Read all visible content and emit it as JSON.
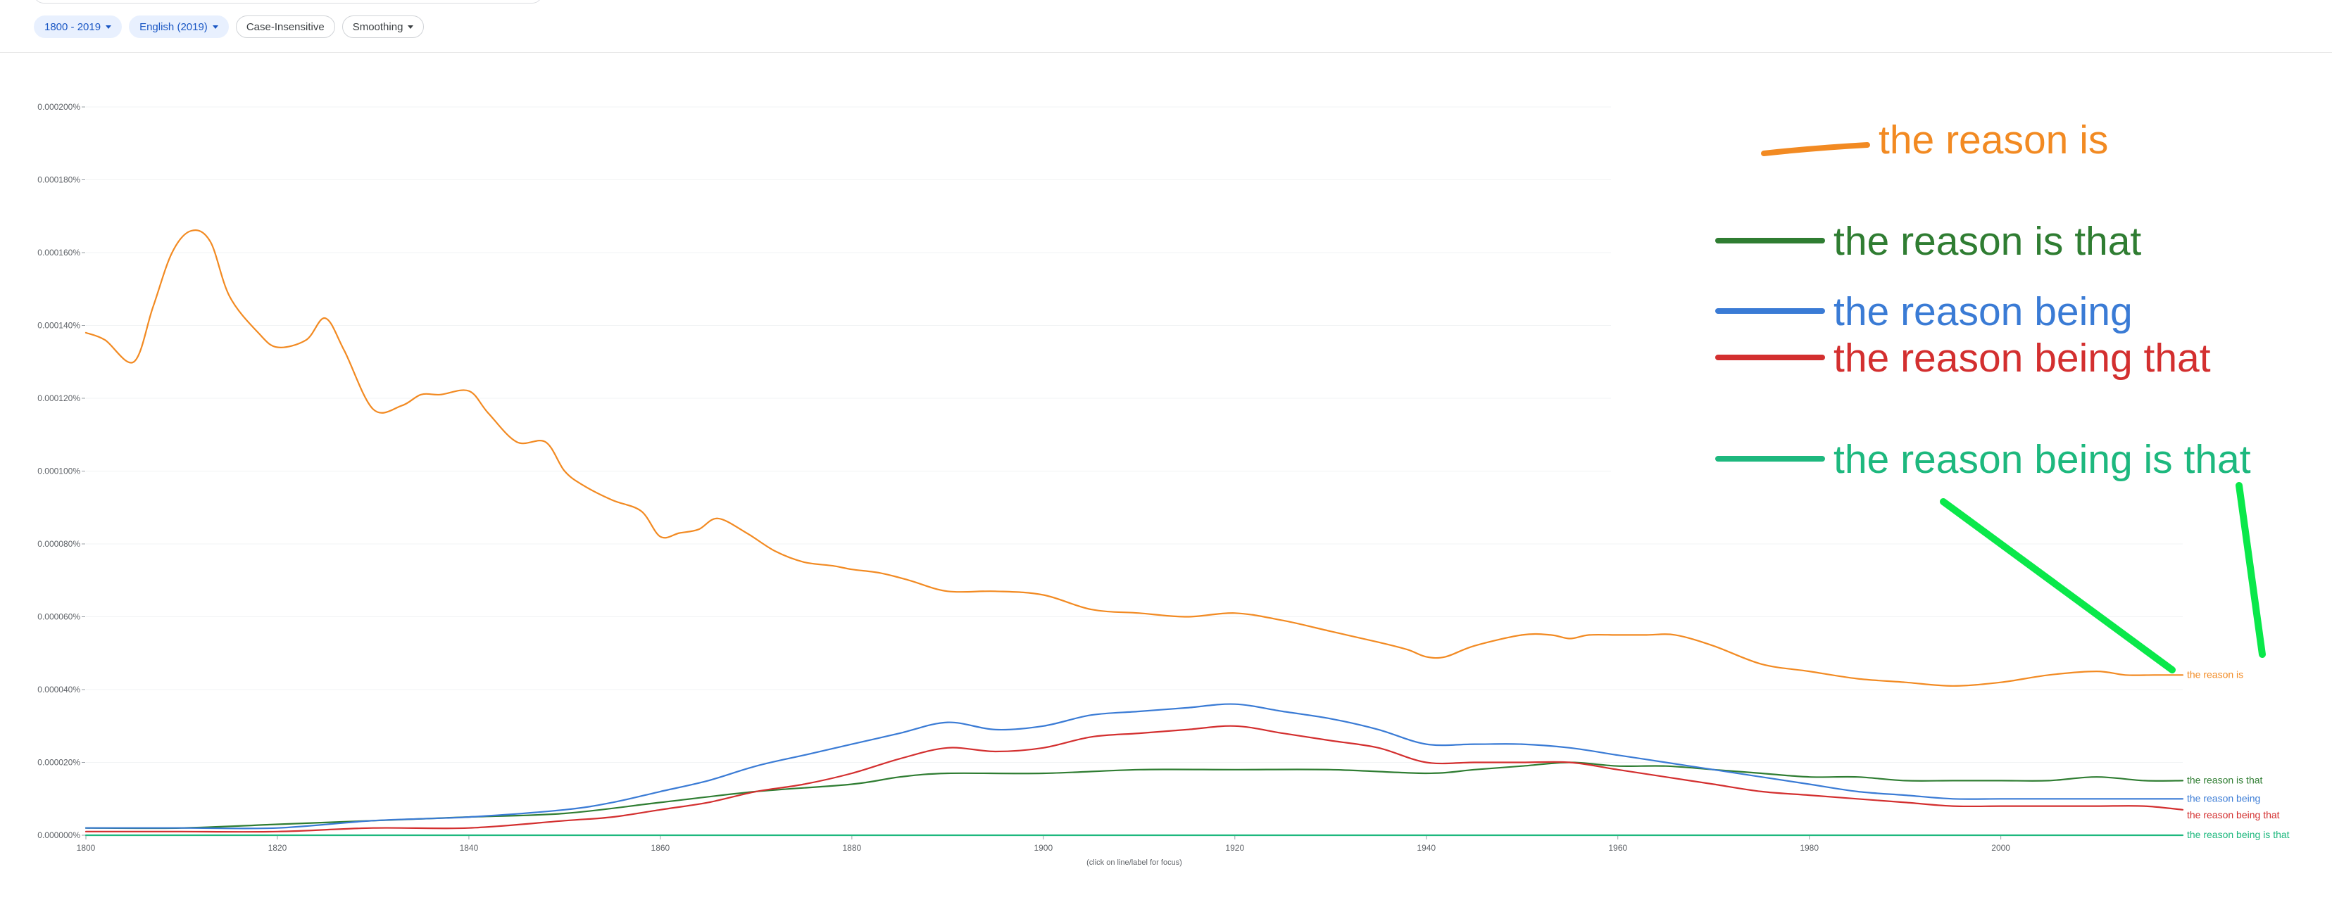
{
  "toolbar": {
    "year_range": "1800 - 2019",
    "corpus": "English (2019)",
    "case": "Case-Insensitive",
    "smoothing": "Smoothing"
  },
  "icons": {
    "dropdown": "chevron-down-icon"
  },
  "chart_data": {
    "type": "line",
    "xlabel": "",
    "ylabel": "",
    "xlim": [
      1800,
      2019
    ],
    "ylim": [
      0,
      0.0002
    ],
    "x_ticks": [
      1800,
      1820,
      1840,
      1860,
      1880,
      1900,
      1920,
      1940,
      1960,
      1980,
      2000
    ],
    "y_ticks": [
      0,
      2e-05,
      4e-05,
      6e-05,
      8e-05,
      0.0001,
      0.00012,
      0.00014,
      0.00016,
      0.00018,
      0.0002
    ],
    "y_tick_labels": [
      "0.000000%",
      "0.000020%",
      "0.000040%",
      "0.000060%",
      "0.000080%",
      "0.000100%",
      "0.000120%",
      "0.000140%",
      "0.000160%",
      "0.000180%",
      "0.000200%"
    ],
    "hint": "(click on line/label for focus)",
    "series": [
      {
        "name": "the reason is",
        "color": "#f28a22",
        "x": [
          1800,
          1802,
          1805,
          1807,
          1809,
          1811,
          1813,
          1815,
          1818,
          1820,
          1823,
          1825,
          1827,
          1830,
          1833,
          1835,
          1837,
          1840,
          1842,
          1845,
          1848,
          1850,
          1852,
          1855,
          1858,
          1860,
          1862,
          1864,
          1866,
          1869,
          1872,
          1875,
          1878,
          1880,
          1883,
          1886,
          1890,
          1895,
          1900,
          1905,
          1910,
          1915,
          1920,
          1925,
          1930,
          1935,
          1938,
          1940,
          1942,
          1945,
          1950,
          1953,
          1955,
          1957,
          1960,
          1963,
          1966,
          1970,
          1975,
          1980,
          1985,
          1990,
          1995,
          2000,
          2005,
          2010,
          2013,
          2016,
          2019
        ],
        "values": [
          0.000138,
          0.000136,
          0.00013,
          0.000145,
          0.00016,
          0.000166,
          0.000163,
          0.000148,
          0.000138,
          0.000134,
          0.000136,
          0.000142,
          0.000133,
          0.000117,
          0.000118,
          0.000121,
          0.000121,
          0.000122,
          0.000116,
          0.000108,
          0.000108,
          0.0001,
          9.6e-05,
          9.2e-05,
          8.9e-05,
          8.2e-05,
          8.3e-05,
          8.4e-05,
          8.7e-05,
          8.3e-05,
          7.8e-05,
          7.5e-05,
          7.4e-05,
          7.3e-05,
          7.2e-05,
          7e-05,
          6.7e-05,
          6.7e-05,
          6.6e-05,
          6.2e-05,
          6.1e-05,
          6e-05,
          6.1e-05,
          5.9e-05,
          5.6e-05,
          5.3e-05,
          5.1e-05,
          4.9e-05,
          4.9e-05,
          5.2e-05,
          5.5e-05,
          5.5e-05,
          5.4e-05,
          5.5e-05,
          5.5e-05,
          5.5e-05,
          5.5e-05,
          5.2e-05,
          4.7e-05,
          4.5e-05,
          4.3e-05,
          4.2e-05,
          4.1e-05,
          4.2e-05,
          4.4e-05,
          4.5e-05,
          4.4e-05,
          4.4e-05,
          4.4e-05
        ]
      },
      {
        "name": "the reason is that",
        "color": "#2f7d32",
        "x": [
          1800,
          1810,
          1820,
          1830,
          1840,
          1850,
          1860,
          1870,
          1880,
          1885,
          1890,
          1900,
          1910,
          1920,
          1930,
          1940,
          1945,
          1950,
          1955,
          1960,
          1965,
          1970,
          1975,
          1980,
          1985,
          1990,
          1995,
          2000,
          2005,
          2010,
          2015,
          2019
        ],
        "values": [
          2e-06,
          2e-06,
          3e-06,
          4e-06,
          5e-06,
          6e-06,
          9e-06,
          1.2e-05,
          1.4e-05,
          1.6e-05,
          1.7e-05,
          1.7e-05,
          1.8e-05,
          1.8e-05,
          1.8e-05,
          1.7e-05,
          1.8e-05,
          1.9e-05,
          2e-05,
          1.9e-05,
          1.9e-05,
          1.8e-05,
          1.7e-05,
          1.6e-05,
          1.6e-05,
          1.5e-05,
          1.5e-05,
          1.5e-05,
          1.5e-05,
          1.6e-05,
          1.5e-05,
          1.5e-05
        ]
      },
      {
        "name": "the reason being",
        "color": "#3a7bd5",
        "x": [
          1800,
          1810,
          1820,
          1830,
          1840,
          1850,
          1855,
          1860,
          1865,
          1870,
          1875,
          1880,
          1885,
          1890,
          1895,
          1900,
          1905,
          1910,
          1915,
          1920,
          1925,
          1930,
          1935,
          1940,
          1945,
          1950,
          1955,
          1960,
          1965,
          1970,
          1975,
          1980,
          1985,
          1990,
          1995,
          2000,
          2005,
          2010,
          2015,
          2019
        ],
        "values": [
          2e-06,
          2e-06,
          2e-06,
          4e-06,
          5e-06,
          7e-06,
          9e-06,
          1.2e-05,
          1.5e-05,
          1.9e-05,
          2.2e-05,
          2.5e-05,
          2.8e-05,
          3.1e-05,
          2.9e-05,
          3e-05,
          3.3e-05,
          3.4e-05,
          3.5e-05,
          3.6e-05,
          3.4e-05,
          3.2e-05,
          2.9e-05,
          2.5e-05,
          2.5e-05,
          2.5e-05,
          2.4e-05,
          2.2e-05,
          2e-05,
          1.8e-05,
          1.6e-05,
          1.4e-05,
          1.2e-05,
          1.1e-05,
          1e-05,
          1e-05,
          1e-05,
          1e-05,
          1e-05,
          1e-05
        ]
      },
      {
        "name": "the reason being that",
        "color": "#d32f2f",
        "x": [
          1800,
          1805,
          1810,
          1820,
          1830,
          1840,
          1850,
          1855,
          1860,
          1865,
          1870,
          1875,
          1880,
          1885,
          1890,
          1895,
          1900,
          1905,
          1910,
          1915,
          1920,
          1925,
          1930,
          1935,
          1940,
          1945,
          1950,
          1955,
          1960,
          1965,
          1970,
          1975,
          1980,
          1985,
          1990,
          1995,
          2000,
          2005,
          2010,
          2015,
          2019
        ],
        "values": [
          1e-06,
          1e-06,
          1e-06,
          1e-06,
          2e-06,
          2e-06,
          4e-06,
          5e-06,
          7e-06,
          9e-06,
          1.2e-05,
          1.4e-05,
          1.7e-05,
          2.1e-05,
          2.4e-05,
          2.3e-05,
          2.4e-05,
          2.7e-05,
          2.8e-05,
          2.9e-05,
          3e-05,
          2.8e-05,
          2.6e-05,
          2.4e-05,
          2e-05,
          2e-05,
          2e-05,
          2e-05,
          1.8e-05,
          1.6e-05,
          1.4e-05,
          1.2e-05,
          1.1e-05,
          1e-05,
          9e-06,
          8e-06,
          8e-06,
          8e-06,
          8e-06,
          8e-06,
          7e-06
        ]
      },
      {
        "name": "the reason being is that",
        "color": "#1db87e",
        "x": [
          1800,
          1850,
          1900,
          1950,
          2000,
          2019
        ],
        "values": [
          0,
          0,
          0,
          0,
          0,
          0
        ]
      }
    ]
  },
  "overlay_legend": [
    {
      "name": "the reason is",
      "color": "#f28a22"
    },
    {
      "name": "the reason is that",
      "color": "#2f7d32"
    },
    {
      "name": "the reason being",
      "color": "#3a7bd5"
    },
    {
      "name": "the reason being that",
      "color": "#d32f2f"
    },
    {
      "name": "the reason being is that",
      "color": "#1db87e"
    }
  ],
  "colors": {
    "gridline": "#f1f3f4",
    "axis": "#e0e0e0",
    "arrow": "#0ae84a",
    "chip_selected_bg": "#e8f0fe"
  }
}
